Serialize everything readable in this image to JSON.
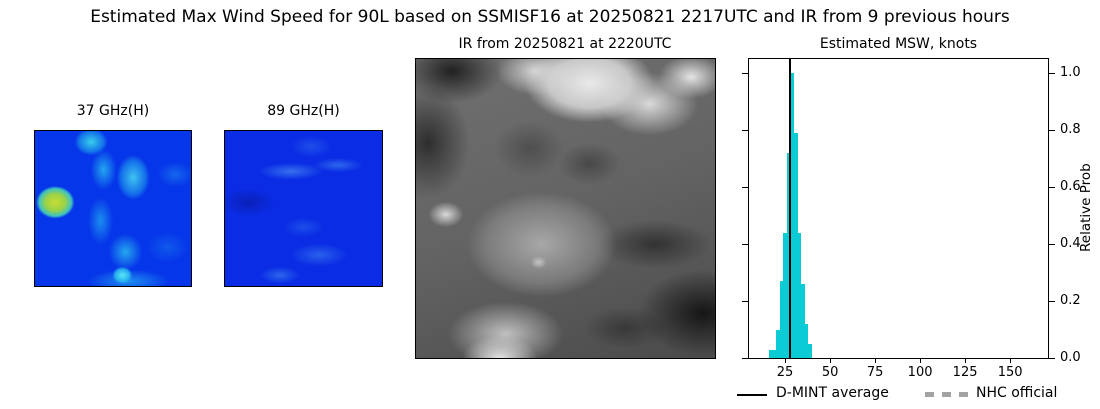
{
  "figure_title": "Estimated Max Wind Speed for 90L based on SSMISF16 at 20250821 2217UTC and IR from 9 previous hours",
  "microwave_panels": [
    {
      "label": "37 GHz(H)"
    },
    {
      "label": "89 GHz(H)"
    }
  ],
  "ir_panel": {
    "title": "IR from 20250821 at 2220UTC"
  },
  "chart_data": {
    "type": "histogram",
    "title": "Estimated MSW, knots",
    "xlabel": "",
    "ylabel": "Relative Prob",
    "xlim": [
      5,
      171
    ],
    "ylim": [
      0,
      1.05
    ],
    "x_ticks": [
      25,
      50,
      75,
      100,
      125,
      150
    ],
    "y_ticks": [
      0.0,
      0.2,
      0.4,
      0.6,
      0.8,
      1.0
    ],
    "y_tick_labels": [
      "0.0",
      "0.2",
      "0.4",
      "0.6",
      "0.8",
      "1.0"
    ],
    "grid": false,
    "bar_color": "#0bccd4",
    "bin_edges_knots": [
      16,
      18,
      20,
      22,
      24,
      26,
      28,
      30,
      32,
      34,
      36,
      38,
      40
    ],
    "relative_prob": [
      0.03,
      0.03,
      0.1,
      0.27,
      0.44,
      0.72,
      1.0,
      0.79,
      0.44,
      0.26,
      0.12,
      0.05
    ],
    "dmint_average_knots": 27.8,
    "legend_position": "bottom",
    "legend": [
      {
        "label": "D-MINT average",
        "style": "solid-line",
        "color": "#000000"
      },
      {
        "label": "NHC official",
        "style": "square-dashed-line",
        "color": "#a3a3a3"
      }
    ]
  }
}
